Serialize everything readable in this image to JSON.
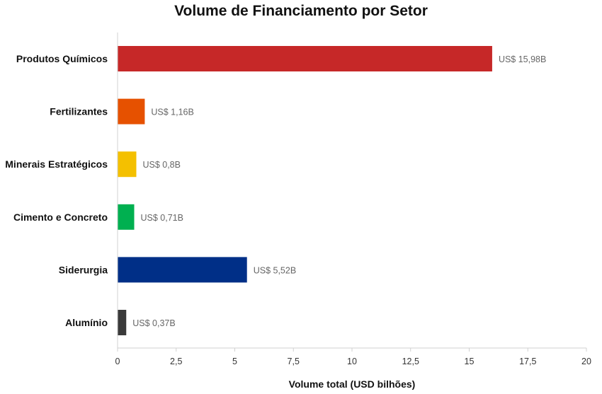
{
  "chart_data": {
    "type": "bar",
    "orientation": "horizontal",
    "title": "Volume de Financiamento por Setor",
    "xlabel": "Volume total (USD bilhões)",
    "ylabel": "",
    "categories": [
      "Produtos Químicos",
      "Fertilizantes",
      "Minerais Estratégicos",
      "Cimento e Concreto",
      "Siderurgia",
      "Alumínio"
    ],
    "values": [
      15.98,
      1.16,
      0.8,
      0.71,
      5.52,
      0.37
    ],
    "data_labels": [
      "US$ 15,98B",
      "US$ 1,16B",
      "US$ 0,8B",
      "US$ 0,71B",
      "US$ 5,52B",
      "US$ 0,37B"
    ],
    "colors": [
      "#c62828",
      "#e65100",
      "#f4c000",
      "#00b050",
      "#002f87",
      "#3a3a3a"
    ],
    "xlim": [
      0,
      20
    ],
    "xticks": [
      0,
      2.5,
      5,
      7.5,
      10,
      12.5,
      15,
      17.5,
      20
    ],
    "xtick_labels": [
      "0",
      "2,5",
      "5",
      "7,5",
      "10",
      "12,5",
      "15",
      "17,5",
      "20"
    ],
    "grid": false,
    "legend": "none"
  }
}
